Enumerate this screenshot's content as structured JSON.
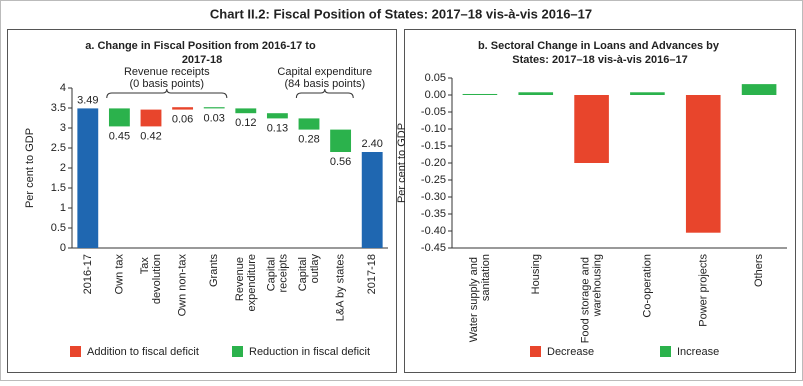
{
  "title": "Chart II.2: Fiscal Position of States: 2017–18 vis-à-vis 2016–17",
  "chart_data": [
    {
      "type": "waterfall",
      "title": "a. Change in Fiscal Position from 2016-17 to 2017-18",
      "ylabel": "Per cent to GDP",
      "categories": [
        "2016-17",
        "Own tax",
        "Tax devolution",
        "Own non-tax",
        "Grants",
        "Revenue expenditure",
        "Capital receipts",
        "Capital outlay",
        "L&A by states",
        "2017-18"
      ],
      "values": [
        3.49,
        0.45,
        0.42,
        0.06,
        0.03,
        0.12,
        0.13,
        0.28,
        0.56,
        2.4
      ],
      "value_labels": [
        "3.49",
        "0.45",
        "0.42",
        "0.06",
        "0.03",
        "0.12",
        "0.13",
        "0.28",
        "0.56",
        "2.40"
      ],
      "colors": [
        "#1f67b1",
        "#2bb24c",
        "#e8452c",
        "#e8452c",
        "#2bb24c",
        "#2bb24c",
        "#2bb24c",
        "#2bb24c",
        "#2bb24c",
        "#1f67b1"
      ],
      "ylim": [
        0,
        4
      ],
      "yticks": [
        0,
        0.5,
        1,
        1.5,
        2,
        2.5,
        3,
        3.5,
        4
      ],
      "legend": [
        {
          "name": "Addition to fiscal deficit",
          "color": "#e8452c"
        },
        {
          "name": "Reduction in fiscal deficit",
          "color": "#2bb24c"
        }
      ],
      "annotations": [
        [
          "Revenue receipts",
          "(0 basis points)"
        ],
        [
          "Capital expenditure",
          "(84 basis points)"
        ]
      ]
    },
    {
      "type": "bar",
      "title": "b. Sectoral Change in Loans and Advances by States: 2017–18 vis-à-vis 2016–17",
      "ylabel": "Per cent to GDP",
      "categories": [
        "Water supply and sanitation",
        "Housing",
        "Food storage and warehousing",
        "Co-operation",
        "Power projects",
        "Others"
      ],
      "values": [
        0.003,
        0.008,
        -0.2,
        0.008,
        -0.405,
        0.032
      ],
      "colors": [
        "#2bb24c",
        "#2bb24c",
        "#e8452c",
        "#2bb24c",
        "#e8452c",
        "#2bb24c"
      ],
      "ylim": [
        -0.45,
        0.05
      ],
      "yticks": [
        0.05,
        {
          "value": 0,
          "label": "0.00"
        },
        -0.05,
        {
          "value": -0.1,
          "label": "-0.10"
        },
        -0.15,
        {
          "value": -0.2,
          "label": "-0.20"
        },
        -0.25,
        {
          "value": -0.3,
          "label": "-0.30"
        },
        -0.35,
        {
          "value": -0.4,
          "label": "-0.40"
        },
        -0.45
      ],
      "legend": [
        {
          "name": "Decrease",
          "color": "#e8452c"
        },
        {
          "name": "Increase",
          "color": "#2bb24c"
        }
      ]
    }
  ]
}
